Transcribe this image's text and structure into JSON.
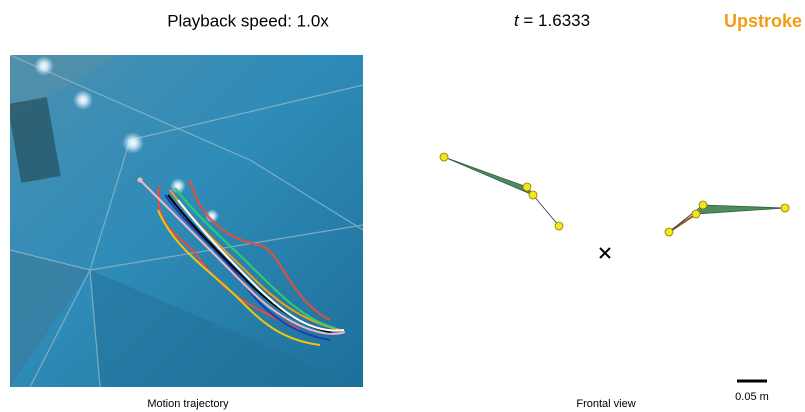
{
  "header": {
    "playback": "Playback speed: 1.0x",
    "time_var": "t",
    "time_value": "= 1.6333",
    "phase": "Upstroke"
  },
  "panels": {
    "left_caption": "Motion trajectory",
    "right_caption": "Frontal view"
  },
  "scale_bar": {
    "label": "0.05 m"
  }
}
